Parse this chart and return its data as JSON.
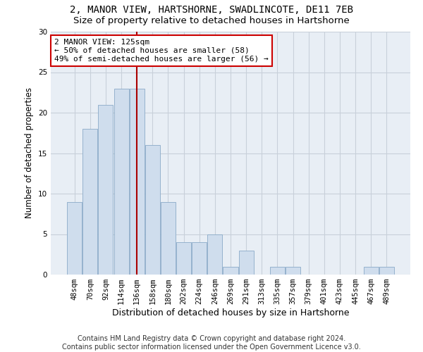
{
  "title": "2, MANOR VIEW, HARTSHORNE, SWADLINCOTE, DE11 7EB",
  "subtitle": "Size of property relative to detached houses in Hartshorne",
  "xlabel": "Distribution of detached houses by size in Hartshorne",
  "ylabel": "Number of detached properties",
  "bar_color": "#cfdded",
  "bar_edge_color": "#8aaac8",
  "categories": [
    "48sqm",
    "70sqm",
    "92sqm",
    "114sqm",
    "136sqm",
    "158sqm",
    "180sqm",
    "202sqm",
    "224sqm",
    "246sqm",
    "269sqm",
    "291sqm",
    "313sqm",
    "335sqm",
    "357sqm",
    "379sqm",
    "401sqm",
    "423sqm",
    "445sqm",
    "467sqm",
    "489sqm"
  ],
  "values": [
    9,
    18,
    21,
    23,
    23,
    16,
    9,
    4,
    4,
    5,
    1,
    3,
    0,
    1,
    1,
    0,
    0,
    0,
    0,
    1,
    1
  ],
  "ylim": [
    0,
    30
  ],
  "yticks": [
    0,
    5,
    10,
    15,
    20,
    25,
    30
  ],
  "vline_x": 4.0,
  "vline_color": "#aa0000",
  "annotation_text": "2 MANOR VIEW: 125sqm\n← 50% of detached houses are smaller (58)\n49% of semi-detached houses are larger (56) →",
  "annotation_box_color": "#ffffff",
  "annotation_box_edgecolor": "#cc0000",
  "footer_text": "Contains HM Land Registry data © Crown copyright and database right 2024.\nContains public sector information licensed under the Open Government Licence v3.0.",
  "bg_color": "#e8eef5",
  "grid_color": "#c8d0da",
  "title_fontsize": 10,
  "subtitle_fontsize": 9.5,
  "xlabel_fontsize": 9,
  "ylabel_fontsize": 8.5,
  "tick_fontsize": 7.5,
  "footer_fontsize": 7,
  "annot_fontsize": 8
}
